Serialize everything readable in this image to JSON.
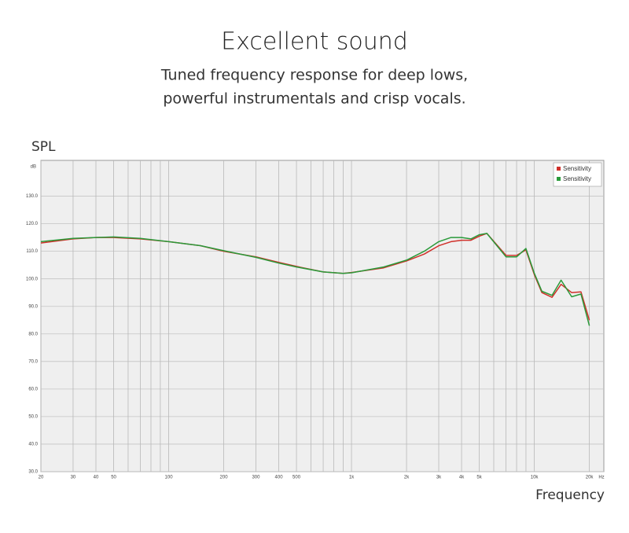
{
  "chart_data": {
    "type": "line",
    "title": "Excellent sound",
    "subtitle": [
      "Tuned frequency response for deep lows,",
      "powerful instrumentals and crisp vocals."
    ],
    "y_label": "SPL",
    "x_label": "Frequency",
    "y_unit": "dB",
    "x_unit": "Hz",
    "log_x": true,
    "grid": true,
    "legend": "top-right",
    "xlim": [
      20,
      24000
    ],
    "ylim": [
      30,
      143
    ],
    "xticks": [
      20,
      30,
      40,
      50,
      100,
      200,
      300,
      400,
      500,
      {
        "value": 1000,
        "label": "1k"
      },
      {
        "value": 2000,
        "label": "2k"
      },
      {
        "value": 3000,
        "label": "3k"
      },
      {
        "value": 4000,
        "label": "4k"
      },
      {
        "value": 5000,
        "label": "5k"
      },
      {
        "value": 10000,
        "label": "10k"
      },
      {
        "value": 20000,
        "label": "20k"
      }
    ],
    "x_minor_ticks": [
      60,
      70,
      80,
      90,
      600,
      700,
      800,
      900,
      6000,
      7000,
      8000,
      9000
    ],
    "yticks": [
      {
        "value": 30,
        "label": "30.0"
      },
      {
        "value": 40,
        "label": "40.0"
      },
      {
        "value": 50,
        "label": "50.0"
      },
      {
        "value": 60,
        "label": "60.0"
      },
      {
        "value": 70,
        "label": "70.0"
      },
      {
        "value": 80,
        "label": "80.0"
      },
      {
        "value": 90,
        "label": "90.0"
      },
      {
        "value": 100,
        "label": "100.0"
      },
      {
        "value": 110,
        "label": "110.0"
      },
      {
        "value": 120,
        "label": "120.0"
      },
      {
        "value": 130,
        "label": "130.0"
      }
    ],
    "x": [
      20,
      30,
      40,
      50,
      70,
      100,
      150,
      200,
      300,
      400,
      500,
      700,
      900,
      1000,
      1500,
      2000,
      2500,
      3000,
      3500,
      4000,
      4500,
      5000,
      5500,
      7000,
      8000,
      9000,
      10000,
      11000,
      12500,
      14000,
      16000,
      18000,
      20000
    ],
    "series": [
      {
        "name": "Sensitivity",
        "color": "#d0302a",
        "values": [
          113,
          114.5,
          115,
          115,
          114.5,
          113.5,
          112,
          110,
          108,
          106,
          104.5,
          102.5,
          102,
          102.3,
          104,
          106.5,
          109,
          112,
          113.5,
          114,
          114,
          115.5,
          116.5,
          108.5,
          108.5,
          110.5,
          101.5,
          95,
          93.3,
          98,
          95,
          95.3,
          85
        ]
      },
      {
        "name": "Sensitivity",
        "color": "#2a9a3a",
        "values": [
          113.5,
          114.7,
          115,
          115.2,
          114.7,
          113.5,
          112,
          110.2,
          107.8,
          105.7,
          104.3,
          102.5,
          102,
          102.2,
          104.3,
          106.8,
          110,
          113.5,
          115,
          115,
          114.5,
          116,
          116.5,
          108,
          108,
          111,
          102,
          95.5,
          94,
          99.5,
          93.5,
          94.5,
          83
        ]
      }
    ]
  }
}
